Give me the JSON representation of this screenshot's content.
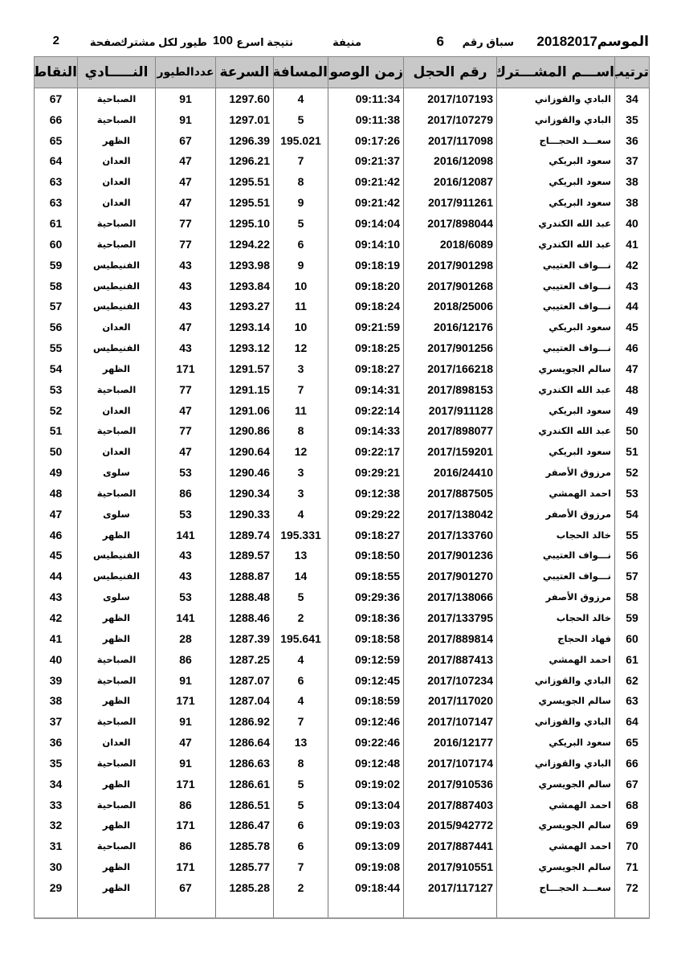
{
  "header": {
    "season_label": "الموسم",
    "season_value": "20182017",
    "race_label": "سباق رقم",
    "race_number": "6",
    "location": "منيفة",
    "result_label": "نتيجة اسرع",
    "birds_count": "100",
    "birds_label": "طيور لكل مشترك",
    "page_label": "صفحة",
    "page_number": "2"
  },
  "columns": [
    "ترتيب",
    "اســـم المشـــترك",
    "رقم الحجل",
    "زمن الوصول",
    "المسافة",
    "السرعة",
    "عددالطيور",
    "النـــــادي",
    "النقاط"
  ],
  "rows": [
    [
      "34",
      "البادي والقوزاني",
      "2017/107193",
      "09:11:34",
      "4",
      "1297.60",
      "91",
      "الصباحية",
      "67"
    ],
    [
      "35",
      "البادي والقوزاني",
      "2017/107279",
      "09:11:38",
      "5",
      "1297.01",
      "91",
      "الصباحية",
      "66"
    ],
    [
      "36",
      "سعـــد الحجـــاج",
      "2017/117098",
      "09:17:26",
      "195.021",
      "1296.39",
      "67",
      "الظهر",
      "65"
    ],
    [
      "37",
      "سعود البريكي",
      "2016/12098",
      "09:21:37",
      "7",
      "1296.21",
      "47",
      "العدان",
      "64"
    ],
    [
      "38",
      "سعود البريكي",
      "2016/12087",
      "09:21:42",
      "8",
      "1295.51",
      "47",
      "العدان",
      "63"
    ],
    [
      "38",
      "سعود البريكي",
      "2017/911261",
      "09:21:42",
      "9",
      "1295.51",
      "47",
      "العدان",
      "63"
    ],
    [
      "40",
      "عبد الله الكندري",
      "2017/898044",
      "09:14:04",
      "5",
      "1295.10",
      "77",
      "الصباحية",
      "61"
    ],
    [
      "41",
      "عبد الله الكندري",
      "2018/6089",
      "09:14:10",
      "6",
      "1294.22",
      "77",
      "الصباحية",
      "60"
    ],
    [
      "42",
      "نـــواف العتيبي",
      "2017/901298",
      "09:18:19",
      "9",
      "1293.98",
      "43",
      "الفنيطيس",
      "59"
    ],
    [
      "43",
      "نـــواف العتيبي",
      "2017/901268",
      "09:18:20",
      "10",
      "1293.84",
      "43",
      "الفنيطيس",
      "58"
    ],
    [
      "44",
      "نـــواف العتيبي",
      "2018/25006",
      "09:18:24",
      "11",
      "1293.27",
      "43",
      "الفنيطيس",
      "57"
    ],
    [
      "45",
      "سعود البريكي",
      "2016/12176",
      "09:21:59",
      "10",
      "1293.14",
      "47",
      "العدان",
      "56"
    ],
    [
      "46",
      "نـــواف العتيبي",
      "2017/901256",
      "09:18:25",
      "12",
      "1293.12",
      "43",
      "الفنيطيس",
      "55"
    ],
    [
      "47",
      "سالم الجويسري",
      "2017/166218",
      "09:18:27",
      "3",
      "1291.57",
      "171",
      "الظهر",
      "54"
    ],
    [
      "48",
      "عبد الله الكندري",
      "2017/898153",
      "09:14:31",
      "7",
      "1291.15",
      "77",
      "الصباحية",
      "53"
    ],
    [
      "49",
      "سعود البريكي",
      "2017/911128",
      "09:22:14",
      "11",
      "1291.06",
      "47",
      "العدان",
      "52"
    ],
    [
      "50",
      "عبد الله الكندري",
      "2017/898077",
      "09:14:33",
      "8",
      "1290.86",
      "77",
      "الصباحية",
      "51"
    ],
    [
      "51",
      "سعود البريكي",
      "2017/159201",
      "09:22:17",
      "12",
      "1290.64",
      "47",
      "العدان",
      "50"
    ],
    [
      "52",
      "مرزوق الأصفر",
      "2016/24410",
      "09:29:21",
      "3",
      "1290.46",
      "53",
      "سلوى",
      "49"
    ],
    [
      "53",
      "احمد الهمشي",
      "2017/887505",
      "09:12:38",
      "3",
      "1290.34",
      "86",
      "الصباحية",
      "48"
    ],
    [
      "54",
      "مرزوق الأصفر",
      "2017/138042",
      "09:29:22",
      "4",
      "1290.33",
      "53",
      "سلوى",
      "47"
    ],
    [
      "55",
      "خالد الحجاب",
      "2017/133760",
      "09:18:27",
      "195.331",
      "1289.74",
      "141",
      "الظهر",
      "46"
    ],
    [
      "56",
      "نـــواف العتيبي",
      "2017/901236",
      "09:18:50",
      "13",
      "1289.57",
      "43",
      "الفنيطيس",
      "45"
    ],
    [
      "57",
      "نـــواف العتيبي",
      "2017/901270",
      "09:18:55",
      "14",
      "1288.87",
      "43",
      "الفنيطيس",
      "44"
    ],
    [
      "58",
      "مرزوق الأصفر",
      "2017/138066",
      "09:29:36",
      "5",
      "1288.48",
      "53",
      "سلوى",
      "43"
    ],
    [
      "59",
      "خالد الحجاب",
      "2017/133795",
      "09:18:36",
      "2",
      "1288.46",
      "141",
      "الظهر",
      "42"
    ],
    [
      "60",
      "فهاد الحجاج",
      "2017/889814",
      "09:18:58",
      "195.641",
      "1287.39",
      "28",
      "الظهر",
      "41"
    ],
    [
      "61",
      "احمد الهمشي",
      "2017/887413",
      "09:12:59",
      "4",
      "1287.25",
      "86",
      "الصباحية",
      "40"
    ],
    [
      "62",
      "البادي والقوزاني",
      "2017/107234",
      "09:12:45",
      "6",
      "1287.07",
      "91",
      "الصباحية",
      "39"
    ],
    [
      "63",
      "سالم الجويسري",
      "2017/117020",
      "09:18:59",
      "4",
      "1287.04",
      "171",
      "الظهر",
      "38"
    ],
    [
      "64",
      "البادي والقوزاني",
      "2017/107147",
      "09:12:46",
      "7",
      "1286.92",
      "91",
      "الصباحية",
      "37"
    ],
    [
      "65",
      "سعود البريكي",
      "2016/12177",
      "09:22:46",
      "13",
      "1286.64",
      "47",
      "العدان",
      "36"
    ],
    [
      "66",
      "البادي والقوزاني",
      "2017/107174",
      "09:12:48",
      "8",
      "1286.63",
      "91",
      "الصباحية",
      "35"
    ],
    [
      "67",
      "سالم الجويسري",
      "2017/910536",
      "09:19:02",
      "5",
      "1286.61",
      "171",
      "الظهر",
      "34"
    ],
    [
      "68",
      "احمد الهمشي",
      "2017/887403",
      "09:13:04",
      "5",
      "1286.51",
      "86",
      "الصباحية",
      "33"
    ],
    [
      "69",
      "سالم الجويسري",
      "2015/942772",
      "09:19:03",
      "6",
      "1286.47",
      "171",
      "الظهر",
      "32"
    ],
    [
      "70",
      "احمد الهمشي",
      "2017/887441",
      "09:13:09",
      "6",
      "1285.78",
      "86",
      "الصباحية",
      "31"
    ],
    [
      "71",
      "سالم الجويسري",
      "2017/910551",
      "09:19:08",
      "7",
      "1285.77",
      "171",
      "الظهر",
      "30"
    ],
    [
      "72",
      "سعـــد الحجـــاج",
      "2017/117127",
      "09:18:44",
      "2",
      "1285.28",
      "67",
      "الظهر",
      "29"
    ]
  ]
}
